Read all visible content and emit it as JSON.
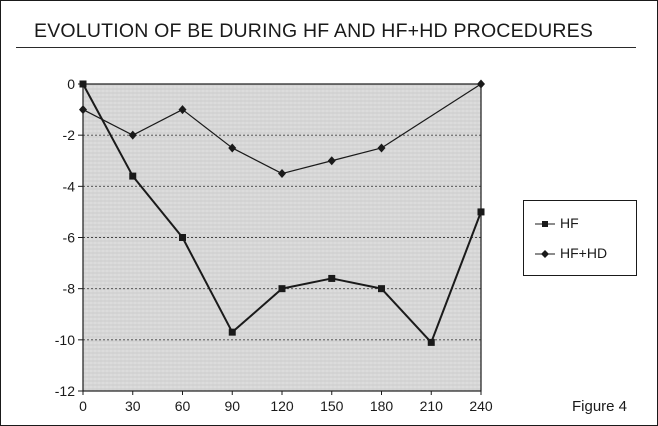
{
  "chart_data": {
    "type": "line",
    "title": "EVOLUTION OF BE DURING HF AND HF+HD PROCEDURES",
    "x": [
      0,
      30,
      60,
      90,
      120,
      150,
      180,
      210,
      240
    ],
    "xlim": [
      0,
      240
    ],
    "ylim": [
      -12,
      0
    ],
    "x_ticks": [
      "0",
      "30",
      "60",
      "90",
      "120",
      "150",
      "180",
      "210",
      "240"
    ],
    "y_ticks": [
      "0",
      "-2",
      "-4",
      "-6",
      "-8",
      "-10",
      "-12"
    ],
    "grid": true,
    "legend_position": "right",
    "series": [
      {
        "name": "HF",
        "marker": "square",
        "values": [
          0,
          -3.6,
          -6,
          -9.7,
          -8,
          -7.6,
          -8,
          -10.1,
          -5
        ]
      },
      {
        "name": "HF+HD",
        "marker": "diamond",
        "values": [
          -1,
          -2,
          -1,
          -2.5,
          -3.5,
          -3,
          -2.5,
          null,
          0
        ]
      }
    ]
  },
  "caption": "Figure 4",
  "colors": {
    "line": "#1a1a1a",
    "plot_background": "#d9d9d9"
  }
}
